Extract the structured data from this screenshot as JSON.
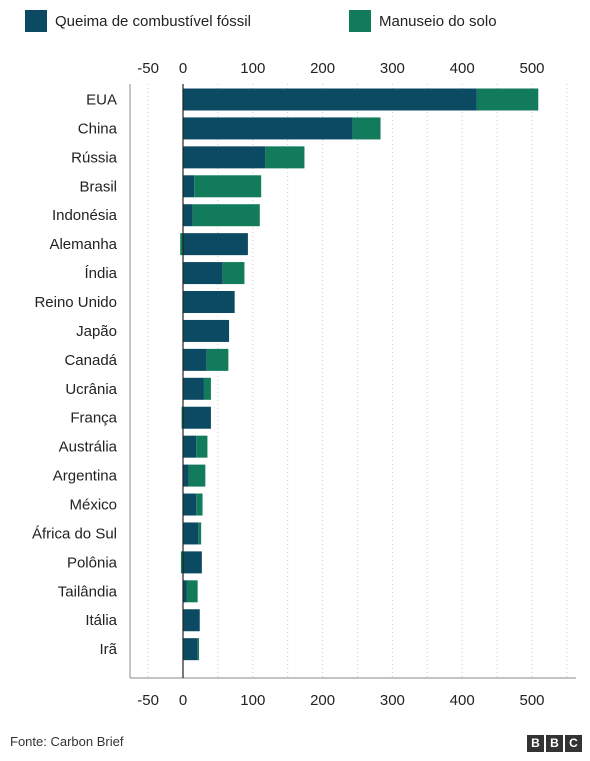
{
  "legend": {
    "fossil_label": "Queima de combustível fóssil",
    "land_label": "Manuseio do solo"
  },
  "colors": {
    "fossil": "#0c4a63",
    "land": "#117b5b",
    "grid": "#c8c8c8",
    "zero_line": "#222222",
    "text": "#222222"
  },
  "footer": {
    "source": "Fonte: Carbon Brief",
    "logo_letters": [
      "B",
      "B",
      "C"
    ]
  },
  "chart_data": {
    "type": "bar",
    "orientation": "horizontal",
    "stacked": true,
    "categories": [
      "EUA",
      "China",
      "Rússia",
      "Brasil",
      "Indonésia",
      "Alemanha",
      "Índia",
      "Reino Unido",
      "Japão",
      "Canadá",
      "Ucrânia",
      "França",
      "Austrália",
      "Argentina",
      "México",
      "África do Sul",
      "Polônia",
      "Tailândia",
      "Itália",
      "Irã"
    ],
    "series": [
      {
        "name": "Queima de combustível fóssil",
        "color": "#0c4a63",
        "values": [
          421,
          243,
          118,
          16,
          14,
          93,
          57,
          74,
          66,
          34,
          30,
          40,
          19,
          8,
          19,
          22,
          27,
          5,
          24,
          21
        ]
      },
      {
        "name": "Manuseio do solo",
        "color": "#117b5b",
        "values": [
          88,
          40,
          56,
          96,
          96,
          -4,
          31,
          0,
          0,
          31,
          10,
          -2,
          16,
          24,
          9,
          4,
          -3,
          16,
          0,
          2
        ]
      }
    ],
    "xlim": [
      -75,
      560
    ],
    "xticks": [
      -50,
      0,
      100,
      200,
      300,
      400,
      500
    ],
    "xtick_labels": [
      "-50",
      "0",
      "100",
      "200",
      "300",
      "400",
      "500"
    ],
    "grid": true,
    "legend_position": "top-left"
  }
}
